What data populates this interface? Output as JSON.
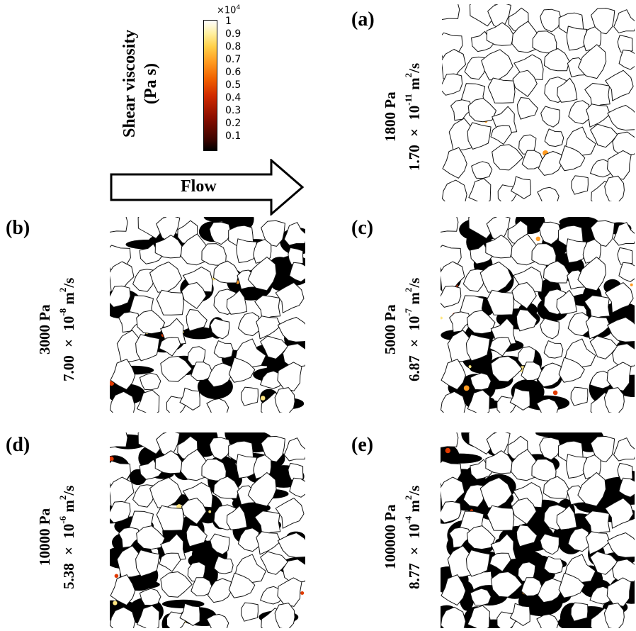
{
  "legend": {
    "title_line1": "Shear viscosity",
    "title_line2": "(Pa s)",
    "multiplier": "×10",
    "multiplier_exp": "4",
    "ticks": [
      "1",
      "0.9",
      "0.8",
      "0.7",
      "0.6",
      "0.5",
      "0.4",
      "0.3",
      "0.2",
      "0.1"
    ],
    "colormap": [
      "#000000",
      "#8a0e00",
      "#e03a00",
      "#ff9a20",
      "#ffe680",
      "#ffffff"
    ]
  },
  "arrow": {
    "label": "Flow"
  },
  "panels": [
    {
      "id": "a",
      "label": "(a)",
      "pressure": "1800 Pa",
      "perm_base": "1.70 × 10",
      "perm_exp": "-11",
      "perm_unit": " m",
      "perm_unit_exp": "2",
      "perm_tail": "/s",
      "fill_fraction": 0.0
    },
    {
      "id": "b",
      "label": "(b)",
      "pressure": "3000 Pa",
      "perm_base": "7.00 × 10",
      "perm_exp": "-8",
      "perm_unit": " m",
      "perm_unit_exp": "2",
      "perm_tail": "/s",
      "fill_fraction": 0.35
    },
    {
      "id": "c",
      "label": "(c)",
      "pressure": "5000 Pa",
      "perm_base": "6.87 × 10",
      "perm_exp": "-7",
      "perm_unit": " m",
      "perm_unit_exp": "2",
      "perm_tail": "/s",
      "fill_fraction": 0.55
    },
    {
      "id": "d",
      "label": "(d)",
      "pressure": "10000 Pa",
      "perm_base": "5.38 × 10",
      "perm_exp": "-6",
      "perm_unit": " m",
      "perm_unit_exp": "2",
      "perm_tail": "/s",
      "fill_fraction": 0.7
    },
    {
      "id": "e",
      "label": "(e)",
      "pressure": "100000 Pa",
      "perm_base": "8.77 × 10",
      "perm_exp": "-4",
      "perm_unit": " m",
      "perm_unit_exp": "2",
      "perm_tail": "/s",
      "fill_fraction": 0.95
    }
  ]
}
